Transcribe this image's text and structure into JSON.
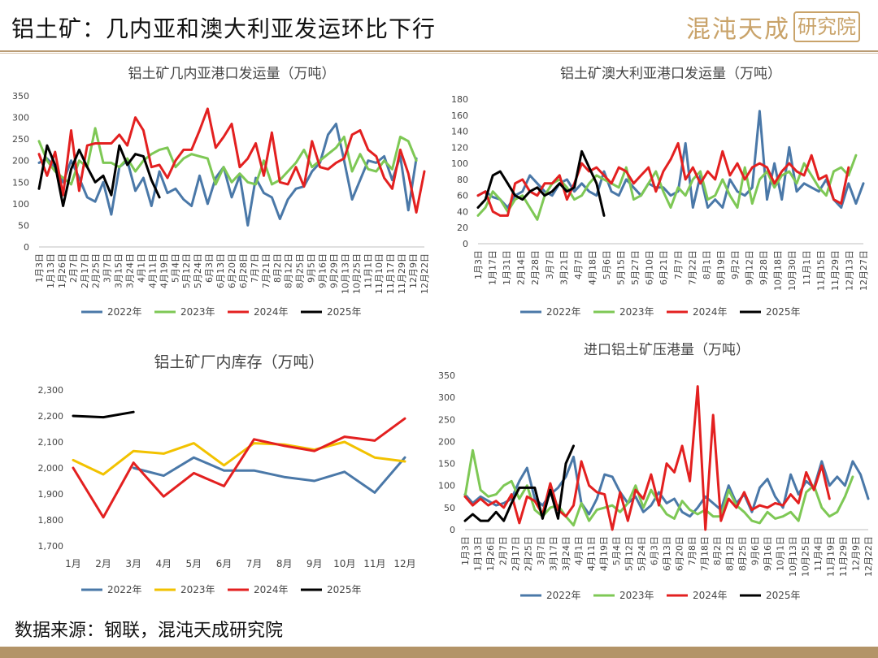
{
  "page": {
    "title": "铝土矿：几内亚和澳大利亚发运环比下行",
    "logo_text": "混沌天成",
    "logo_box_text": "研究院",
    "source": "数据来源：钢联，混沌天成研究院"
  },
  "colors": {
    "2022年": "#4a78a8",
    "2023年": "#7ec855",
    "2024年": "#e32020",
    "2025年": "#000000",
    "2023年_inv": "#f2c200"
  },
  "chart_data": [
    {
      "type": "line",
      "title": "铝土矿几内亚港口发运量（万吨）",
      "ylim": [
        0,
        350
      ],
      "yticks": [
        "0",
        "50",
        "100",
        "150",
        "200",
        "250",
        "300",
        "350"
      ],
      "x_labels": [
        "1月3日",
        "1月13日",
        "1月26日",
        "2月7日",
        "2月17日",
        "2月25日",
        "3月7日",
        "3月15日",
        "3月24日",
        "4月1日",
        "4月11日",
        "4月19日",
        "5月4日",
        "5月12日",
        "5月24日",
        "6月3日",
        "6月13日",
        "6月20日",
        "6月28日",
        "7月7日",
        "7月21日",
        "8月2日",
        "8月12日",
        "8月25日",
        "9月5日",
        "9月16日",
        "9月29日",
        "10月13日",
        "10月25日",
        "11月1日",
        "11月10日",
        "11月17日",
        "11月29日",
        "12月9日",
        "12月22日"
      ],
      "legend_position": "bottom",
      "series": [
        {
          "name": "2022年",
          "color": "#4a78a8",
          "values": [
            195,
            205,
            185,
            150,
            200,
            160,
            115,
            105,
            150,
            75,
            185,
            200,
            130,
            160,
            95,
            175,
            125,
            135,
            110,
            95,
            165,
            100,
            160,
            185,
            115,
            165,
            50,
            160,
            125,
            115,
            65,
            110,
            135,
            140,
            175,
            195,
            260,
            285,
            200,
            110,
            155,
            200,
            195,
            210,
            155,
            210,
            85,
            205
          ]
        },
        {
          "name": "2023年",
          "color": "#7ec855",
          "values": [
            245,
            200,
            175,
            160,
            145,
            200,
            185,
            275,
            195,
            195,
            185,
            205,
            175,
            200,
            215,
            225,
            230,
            185,
            205,
            215,
            210,
            205,
            145,
            185,
            150,
            170,
            150,
            145,
            200,
            145,
            155,
            175,
            195,
            225,
            185,
            200,
            215,
            230,
            255,
            175,
            215,
            180,
            175,
            200,
            180,
            255,
            245,
            200
          ]
        },
        {
          "name": "2024年",
          "color": "#e32020",
          "values": [
            215,
            165,
            220,
            120,
            270,
            130,
            235,
            240,
            240,
            240,
            260,
            235,
            300,
            270,
            185,
            190,
            160,
            200,
            225,
            225,
            270,
            320,
            230,
            255,
            285,
            185,
            205,
            240,
            165,
            265,
            150,
            145,
            185,
            140,
            245,
            185,
            180,
            195,
            205,
            260,
            270,
            225,
            210,
            160,
            135,
            225,
            170,
            80,
            175
          ]
        },
        {
          "name": "2025年",
          "color": "#000000",
          "values": [
            135,
            235,
            190,
            95,
            180,
            225,
            185,
            150,
            165,
            120,
            235,
            190,
            215,
            210,
            155,
            115
          ]
        }
      ]
    },
    {
      "type": "line",
      "title": "铝土矿澳大利亚港口发运量（万吨）",
      "ylim": [
        0,
        180
      ],
      "yticks": [
        "0",
        "20",
        "40",
        "60",
        "80",
        "100",
        "120",
        "140",
        "160",
        "180"
      ],
      "x_labels": [
        "1月3日",
        "1月17日",
        "1月31日",
        "2月14日",
        "2月28日",
        "3月7日",
        "3月21日",
        "4月7日",
        "4月18日",
        "5月6日",
        "5月15日",
        "5月27日",
        "6月10日",
        "6月21日",
        "7月7日",
        "7月22日",
        "8月1日",
        "8月19日",
        "9月2日",
        "9月12日",
        "9月28日",
        "10月18日",
        "10月30日",
        "11月1日",
        "11月15日",
        "11月29日",
        "12月13日",
        "12月27日"
      ],
      "legend_position": "bottom",
      "series": [
        {
          "name": "2022年",
          "color": "#4a78a8",
          "values": [
            60,
            65,
            58,
            55,
            45,
            60,
            65,
            85,
            75,
            65,
            60,
            75,
            80,
            65,
            75,
            65,
            60,
            90,
            65,
            60,
            80,
            70,
            60,
            75,
            70,
            70,
            60,
            65,
            125,
            45,
            85,
            45,
            55,
            45,
            80,
            65,
            60,
            70,
            165,
            55,
            100,
            55,
            120,
            65,
            75,
            70,
            65,
            80,
            55,
            45,
            75,
            50,
            75
          ]
        },
        {
          "name": "2023年",
          "color": "#7ec855",
          "values": [
            35,
            45,
            65,
            55,
            40,
            55,
            60,
            45,
            30,
            60,
            75,
            80,
            70,
            55,
            60,
            75,
            85,
            80,
            75,
            70,
            95,
            55,
            60,
            75,
            90,
            65,
            45,
            70,
            60,
            80,
            90,
            55,
            60,
            80,
            60,
            45,
            95,
            50,
            80,
            90,
            70,
            85,
            90,
            75,
            100,
            85,
            70,
            60,
            90,
            95,
            85,
            110
          ]
        },
        {
          "name": "2024年",
          "color": "#e32020",
          "values": [
            60,
            65,
            40,
            35,
            35,
            75,
            80,
            65,
            60,
            75,
            75,
            85,
            55,
            75,
            100,
            90,
            95,
            85,
            75,
            95,
            90,
            75,
            85,
            95,
            65,
            90,
            105,
            125,
            80,
            95,
            75,
            90,
            80,
            115,
            85,
            100,
            80,
            95,
            100,
            95,
            75,
            90,
            100,
            90,
            85,
            110,
            80,
            85,
            55,
            50,
            95
          ]
        },
        {
          "name": "2025年",
          "color": "#000000",
          "values": [
            45,
            55,
            85,
            90,
            75,
            60,
            55,
            65,
            70,
            60,
            65,
            75,
            65,
            70,
            115,
            95,
            75,
            35
          ]
        }
      ]
    },
    {
      "type": "line",
      "title": "铝土矿厂内库存（万吨）",
      "ylim": [
        1700,
        2300
      ],
      "yticks": [
        "1,700",
        "1,800",
        "1,900",
        "2,000",
        "2,100",
        "2,200",
        "2,300"
      ],
      "x_labels": [
        "1月",
        "2月",
        "3月",
        "4月",
        "5月",
        "6月",
        "7月",
        "8月",
        "9月",
        "10月",
        "11月",
        "12月"
      ],
      "legend_position": "bottom",
      "series": [
        {
          "name": "2022年",
          "color": "#4a78a8",
          "values": [
            null,
            null,
            2000,
            1970,
            2040,
            1990,
            1990,
            1965,
            1950,
            1985,
            1905,
            2040
          ]
        },
        {
          "name": "2023年",
          "color": "#f2c200",
          "values": [
            2030,
            1975,
            2065,
            2055,
            2095,
            2010,
            2095,
            2090,
            2070,
            2100,
            2040,
            2025
          ]
        },
        {
          "name": "2024年",
          "color": "#e32020",
          "values": [
            2000,
            1810,
            2020,
            1890,
            1980,
            1930,
            2110,
            2085,
            2065,
            2120,
            2105,
            2190
          ]
        },
        {
          "name": "2025年",
          "color": "#000000",
          "values": [
            2200,
            2195,
            2215
          ]
        }
      ]
    },
    {
      "type": "line",
      "title": "进口铝土矿压港量（万吨）",
      "ylim": [
        0,
        350
      ],
      "yticks": [
        "0",
        "50",
        "100",
        "150",
        "200",
        "250",
        "300",
        "350"
      ],
      "x_labels": [
        "1月3日",
        "1月13日",
        "1月26日",
        "2月7日",
        "2月17日",
        "2月25日",
        "3月7日",
        "3月17日",
        "3月24日",
        "4月1日",
        "4月11日",
        "4月19日",
        "5月4日",
        "5月12日",
        "5月24日",
        "6月3日",
        "6月13日",
        "6月20日",
        "7月8日",
        "7月18日",
        "8月2日",
        "8月12日",
        "8月25日",
        "9月6日",
        "9月16日",
        "10月1日",
        "10月13日",
        "10月25日",
        "11月4日",
        "11月19日",
        "11月29日",
        "12月9日",
        "12月22日"
      ],
      "legend_position": "bottom",
      "series": [
        {
          "name": "2022年",
          "color": "#4a78a8",
          "values": [
            80,
            60,
            75,
            65,
            55,
            60,
            70,
            110,
            140,
            70,
            55,
            80,
            95,
            120,
            165,
            60,
            35,
            70,
            125,
            120,
            85,
            60,
            75,
            40,
            55,
            85,
            60,
            70,
            40,
            30,
            50,
            75,
            60,
            45,
            100,
            60,
            80,
            40,
            95,
            115,
            75,
            50,
            125,
            80,
            110,
            95,
            155,
            100,
            120,
            100,
            155,
            125,
            70
          ]
        },
        {
          "name": "2023年",
          "color": "#7ec855",
          "values": [
            75,
            180,
            90,
            75,
            80,
            100,
            110,
            70,
            100,
            45,
            30,
            50,
            55,
            30,
            10,
            60,
            20,
            45,
            50,
            55,
            40,
            60,
            100,
            50,
            90,
            60,
            35,
            25,
            65,
            45,
            35,
            45,
            30,
            30,
            90,
            55,
            40,
            20,
            15,
            40,
            25,
            30,
            40,
            20,
            85,
            100,
            50,
            30,
            40,
            75,
            120
          ]
        },
        {
          "name": "2024年",
          "color": "#e32020",
          "values": [
            75,
            55,
            70,
            55,
            65,
            50,
            80,
            15,
            75,
            65,
            35,
            105,
            45,
            30,
            55,
            155,
            100,
            85,
            80,
            0,
            85,
            20,
            90,
            70,
            125,
            55,
            150,
            130,
            190,
            110,
            325,
            0,
            260,
            20,
            70,
            50,
            85,
            45,
            55,
            50,
            60,
            55,
            80,
            60,
            130,
            90,
            145,
            70
          ]
        },
        {
          "name": "2025年",
          "color": "#000000",
          "values": [
            20,
            35,
            20,
            20,
            40,
            20,
            60,
            95,
            95,
            95,
            25,
            90,
            25,
            150,
            190
          ]
        }
      ]
    }
  ]
}
